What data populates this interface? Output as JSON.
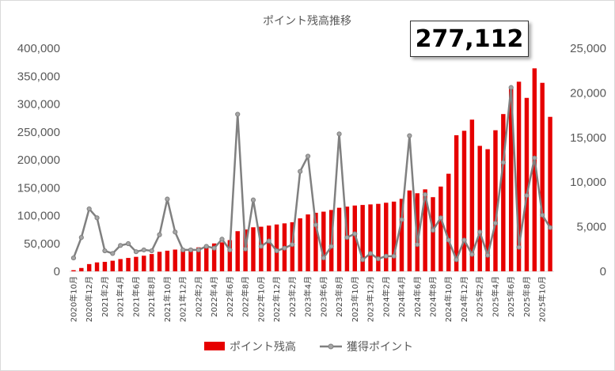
{
  "badge": {
    "value": "277,112"
  },
  "chart_data": {
    "type": "bar+line",
    "title": "ポイント残高推移",
    "y_left": {
      "min": 0,
      "max": 400000,
      "ticks": [
        "0",
        "50,000",
        "100,000",
        "150,000",
        "200,000",
        "250,000",
        "300,000",
        "350,000",
        "400,000"
      ],
      "tick_values": [
        0,
        50000,
        100000,
        150000,
        200000,
        250000,
        300000,
        350000,
        400000
      ]
    },
    "y_right": {
      "min": 0,
      "max": 25000,
      "ticks": [
        "0",
        "5,000",
        "10,000",
        "15,000",
        "20,000",
        "25,000"
      ],
      "tick_values": [
        0,
        5000,
        10000,
        15000,
        20000,
        25000
      ]
    },
    "categories": [
      "2020年10月",
      "2020年11月",
      "2020年12月",
      "2021年1月",
      "2021年2月",
      "2021年3月",
      "2021年4月",
      "2021年5月",
      "2021年6月",
      "2021年7月",
      "2021年8月",
      "2021年9月",
      "2021年10月",
      "2021年11月",
      "2021年12月",
      "2022年1月",
      "2022年2月",
      "2022年3月",
      "2022年4月",
      "2022年5月",
      "2022年6月",
      "2022年7月",
      "2022年8月",
      "2022年9月",
      "2022年10月",
      "2022年11月",
      "2022年12月",
      "2023年1月",
      "2023年2月",
      "2023年3月",
      "2023年4月",
      "2023年5月",
      "2023年6月",
      "2023年7月",
      "2023年8月",
      "2023年9月",
      "2023年10月",
      "2023年11月",
      "2023年12月",
      "2024年1月",
      "2024年2月",
      "2024年3月",
      "2024年4月",
      "2024年5月",
      "2024年6月",
      "2024年7月",
      "2024年8月",
      "2024年9月",
      "2024年10月",
      "2024年11月",
      "2024年12月",
      "2025年1月",
      "2025年2月",
      "2025年3月",
      "2025年4月",
      "2025年5月",
      "2025年6月",
      "2025年7月",
      "2025年8月",
      "2025年9月",
      "2025年10月",
      "2025年11月"
    ],
    "x_tick_labels": [
      "2020年10月",
      "2020年12月",
      "2021年2月",
      "2021年4月",
      "2021年6月",
      "2021年8月",
      "2021年10月",
      "2021年12月",
      "2022年2月",
      "2022年4月",
      "2022年6月",
      "2022年8月",
      "2022年10月",
      "2022年12月",
      "2023年2月",
      "2023年4月",
      "2023年6月",
      "2023年8月",
      "2023年10月",
      "2023年12月",
      "2024年2月",
      "2024年4月",
      "2024年6月",
      "2024年8月",
      "2024年10月",
      "2024年12月",
      "2025年2月",
      "2025年4月",
      "2025年6月",
      "2025年8月",
      "2025年10月"
    ],
    "series": [
      {
        "name": "ポイント残高",
        "type": "bar",
        "axis": "left",
        "color": "#e60000",
        "values": [
          2000,
          6000,
          13000,
          16000,
          17000,
          19000,
          22000,
          24000,
          26000,
          28000,
          31000,
          35000,
          37000,
          39000,
          40000,
          41000,
          43000,
          46000,
          50000,
          52000,
          56000,
          72000,
          75000,
          79000,
          80000,
          82000,
          84000,
          86000,
          88000,
          95000,
          102000,
          105000,
          107000,
          110000,
          114000,
          116000,
          118000,
          119000,
          120000,
          121000,
          123000,
          125000,
          130000,
          145000,
          140000,
          147000,
          133000,
          152000,
          175000,
          244000,
          252000,
          272000,
          225000,
          219000,
          253000,
          282000,
          330000,
          340000,
          311000,
          364000,
          338000,
          277000
        ]
      },
      {
        "name": "獲得ポイント",
        "type": "line",
        "axis": "right",
        "color": "#808080",
        "values": [
          1500,
          3800,
          7000,
          6000,
          2300,
          2000,
          2900,
          3100,
          2200,
          2400,
          2300,
          4100,
          8100,
          4400,
          2400,
          2400,
          2400,
          2800,
          2600,
          3600,
          2400,
          17600,
          2500,
          8000,
          2800,
          3400,
          2300,
          2600,
          3000,
          11200,
          12900,
          5200,
          1500,
          2800,
          15400,
          3800,
          4200,
          1300,
          2000,
          1400,
          1700,
          1700,
          5800,
          15200,
          3000,
          8600,
          4600,
          6000,
          3500,
          1300,
          3500,
          1900,
          4400,
          1800,
          5400,
          12200,
          20600,
          2700,
          8500,
          12700,
          6300,
          4900
        ]
      }
    ],
    "legend_position": "bottom",
    "grid": false
  }
}
